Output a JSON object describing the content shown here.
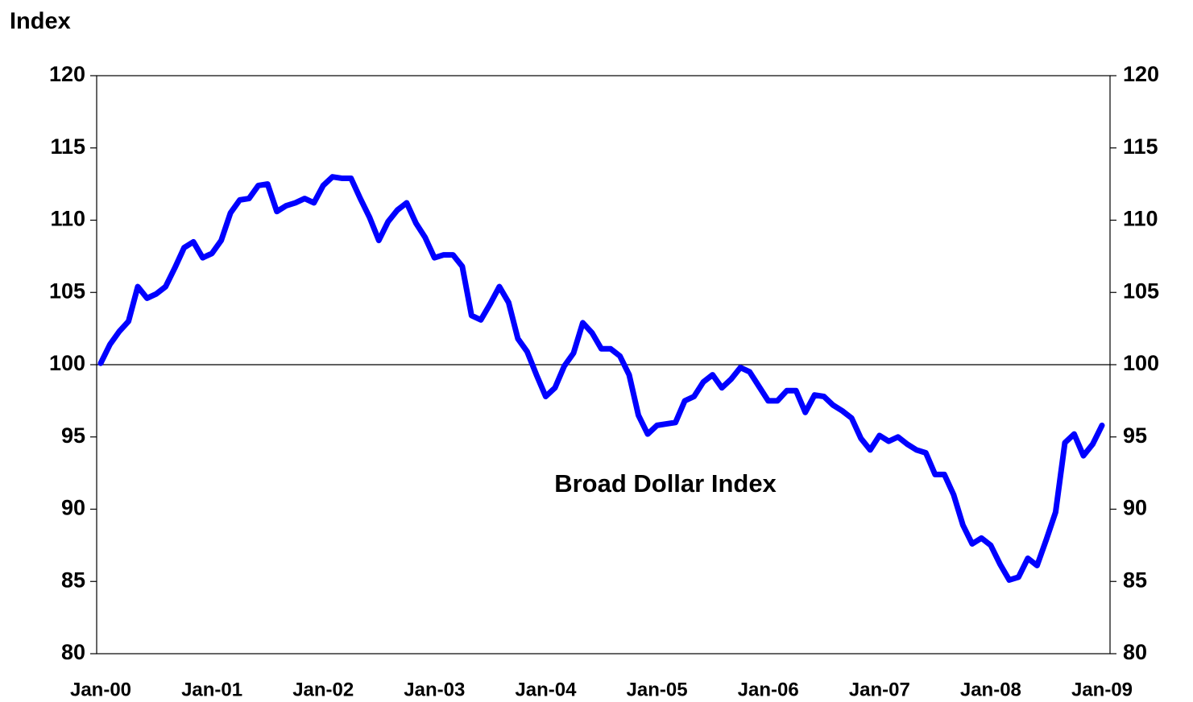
{
  "chart_data": {
    "type": "line",
    "y_label": "Index",
    "annotation": "Broad Dollar Index",
    "categories": [
      "Jan-00",
      null,
      null,
      null,
      null,
      null,
      null,
      null,
      null,
      null,
      null,
      null,
      "Jan-01",
      null,
      null,
      null,
      null,
      null,
      null,
      null,
      null,
      null,
      null,
      null,
      "Jan-02",
      null,
      null,
      null,
      null,
      null,
      null,
      null,
      null,
      null,
      null,
      null,
      "Jan-03",
      null,
      null,
      null,
      null,
      null,
      null,
      null,
      null,
      null,
      null,
      null,
      "Jan-04",
      null,
      null,
      null,
      null,
      null,
      null,
      null,
      null,
      null,
      null,
      null,
      "Jan-05",
      null,
      null,
      null,
      null,
      null,
      null,
      null,
      null,
      null,
      null,
      null,
      "Jan-06",
      null,
      null,
      null,
      null,
      null,
      null,
      null,
      null,
      null,
      null,
      null,
      "Jan-07",
      null,
      null,
      null,
      null,
      null,
      null,
      null,
      null,
      null,
      null,
      null,
      "Jan-08",
      null,
      null,
      null,
      null,
      null,
      null,
      null,
      null,
      null,
      null,
      null,
      "Jan-09"
    ],
    "values": [
      100.1,
      101.4,
      102.3,
      103.0,
      105.4,
      104.6,
      104.9,
      105.4,
      106.7,
      108.1,
      108.5,
      107.4,
      107.7,
      108.6,
      110.5,
      111.4,
      111.5,
      112.4,
      112.5,
      110.6,
      111.0,
      111.2,
      111.5,
      111.2,
      112.4,
      113.0,
      112.9,
      112.9,
      111.5,
      110.2,
      108.6,
      109.9,
      110.7,
      111.2,
      109.8,
      108.8,
      107.4,
      107.6,
      107.6,
      106.8,
      103.4,
      103.1,
      104.2,
      105.4,
      104.3,
      101.8,
      100.9,
      99.3,
      97.8,
      98.4,
      99.9,
      100.8,
      102.9,
      102.2,
      101.1,
      101.1,
      100.6,
      99.3,
      96.5,
      95.2,
      95.8,
      95.9,
      96.0,
      97.5,
      97.8,
      98.8,
      99.3,
      98.4,
      99.0,
      99.8,
      99.5,
      98.5,
      97.5,
      97.5,
      98.2,
      98.2,
      96.7,
      97.9,
      97.8,
      97.2,
      96.8,
      96.3,
      94.9,
      94.1,
      95.1,
      94.7,
      95.0,
      94.5,
      94.1,
      93.9,
      92.4,
      92.4,
      91.0,
      88.9,
      87.6,
      88.0,
      87.5,
      86.2,
      85.1,
      85.3,
      86.6,
      86.1,
      87.9,
      89.8,
      94.6,
      95.2,
      93.7,
      94.5,
      95.8
    ],
    "color": "#0000ff",
    "ylim": [
      80,
      120
    ],
    "yticks": [
      80,
      85,
      90,
      95,
      100,
      105,
      110,
      115,
      120
    ],
    "y2lim": [
      80,
      120
    ],
    "y2ticks": [
      80,
      85,
      90,
      95,
      100,
      105,
      110,
      115,
      120
    ],
    "hline": 100
  }
}
